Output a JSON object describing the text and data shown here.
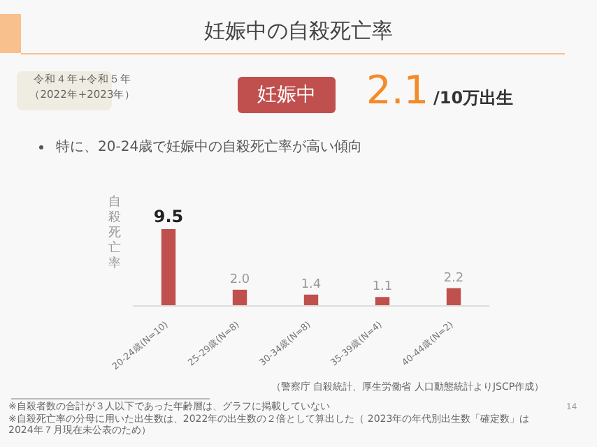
{
  "chart_data": {
    "type": "bar",
    "title": "妊娠中の自殺死亡率",
    "ylabel": "自殺死亡率",
    "categories": [
      "20-24歳(N=10)",
      "25-29歳(N=8)",
      "30-34歳(N=8)",
      "35-39歳(N=4)",
      "40-44歳(N=2)"
    ],
    "values": [
      9.5,
      2.0,
      1.4,
      1.1,
      2.2
    ],
    "value_labels": [
      "9.5",
      "2.0",
      "1.4",
      "1.1",
      "2.2"
    ],
    "color": "#c0504d",
    "tick_labels": "x",
    "grid": false,
    "legend": false,
    "annotations": [
      "令和４年+令和５年",
      "（2022年+2023年）",
      "妊娠中",
      "2.1",
      "/10万出生",
      "特に、20-24歳で妊娠中の自殺死亡率が高い傾向",
      "（警察庁 自殺統計、厚生労働省 人口動態統計よりJSCP作成）",
      "※自殺者数の合計が３人以下であった年齢層は、グラフに掲載していない",
      "※自殺死亡率の分母に用いた出生数は、2022年の出生数の２倍として算出した（ 2023年の年代別出生数「確定数」は2024年７月現在未公表のため）",
      "14"
    ]
  }
}
